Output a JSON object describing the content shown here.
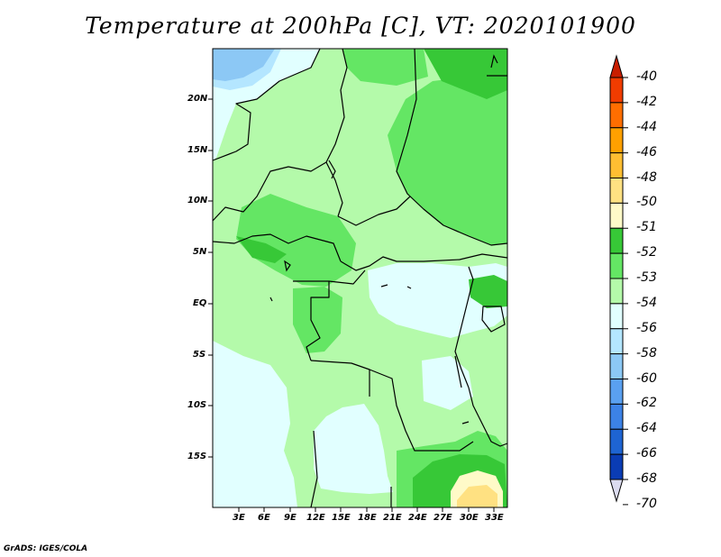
{
  "title": "Temperature at 200hPa [C], VT: 2020101900",
  "credit": "GrADS: IGES/COLA",
  "lat_labels": [
    "20N",
    "15N",
    "10N",
    "5N",
    "EQ",
    "5S",
    "10S",
    "15S"
  ],
  "lon_labels": [
    "3E",
    "6E",
    "9E",
    "12E",
    "15E",
    "18E",
    "21E",
    "24E",
    "27E",
    "30E",
    "33E"
  ],
  "colorbar": {
    "labels": [
      "-40",
      "-42",
      "-44",
      "-46",
      "-48",
      "-50",
      "-51",
      "-52",
      "-53",
      "-54",
      "-56",
      "-58",
      "-60",
      "-62",
      "-64",
      "-66",
      "-68",
      "-70"
    ],
    "colors": [
      "#c81e00",
      "#f03c00",
      "#ff6e00",
      "#ffa000",
      "#ffbe32",
      "#ffe182",
      "#fffac8",
      "#37c837",
      "#64e664",
      "#b4faaa",
      "#e1ffff",
      "#b4e6ff",
      "#8cc8f5",
      "#5aa0f0",
      "#3c82e6",
      "#1e64d2",
      "#0a3cb4",
      "#000a73"
    ]
  },
  "legend": {
    "-50": "#ffe182",
    "-51": "#fffac8",
    "-52": "#37c837",
    "-53": "#64e664",
    "-54": "#b4faaa",
    "-56": "#e1ffff",
    "-58": "#b4e6ff",
    "-60": "#8cc8f5"
  }
}
